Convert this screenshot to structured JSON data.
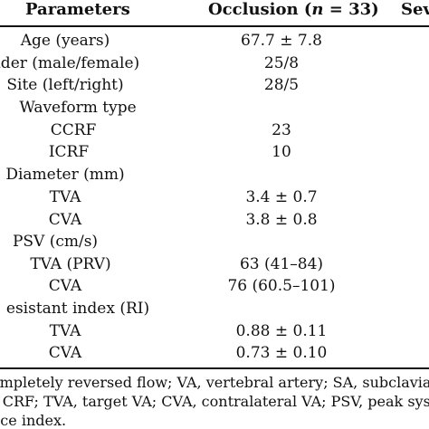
{
  "table": {
    "headers": {
      "parameters": "Parameters",
      "occlusion_prefix": "Occlusion (",
      "occlusion_n": "n",
      "occlusion_suffix": " = 33)",
      "severe": "Seve"
    },
    "rows": [
      {
        "param": "Age (years)",
        "occlusion": "67.7 ± 7.8"
      },
      {
        "param": "nder (male/female)",
        "occlusion": "25/8"
      },
      {
        "param": "Site (left/right)",
        "occlusion": "28/5"
      },
      {
        "param": "Waveform type",
        "occlusion": ""
      },
      {
        "param": "CCRF",
        "occlusion": "23"
      },
      {
        "param": "ICRF",
        "occlusion": "10"
      },
      {
        "param": "Diameter (mm)",
        "occlusion": ""
      },
      {
        "param": "TVA",
        "occlusion": "3.4 ± 0.7"
      },
      {
        "param": "CVA",
        "occlusion": "3.8 ± 0.8"
      },
      {
        "param": "PSV (cm/s)",
        "occlusion": ""
      },
      {
        "param": "TVA (PRV)",
        "occlusion": "63 (41–84)"
      },
      {
        "param": "CVA",
        "occlusion": "76 (60.5–101)"
      },
      {
        "param": "esistant index (RI)",
        "occlusion": ""
      },
      {
        "param": "TVA",
        "occlusion": "0.88 ± 0.11"
      },
      {
        "param": "CVA",
        "occlusion": "0.73 ± 0.10"
      }
    ],
    "footnotes": [
      "ompletely reversed flow; VA, vertebral artery; SA, subclavia",
      "r CRF; TVA, target VA; CVA, contralateral VA; PSV, peak sys",
      "nce index."
    ]
  }
}
